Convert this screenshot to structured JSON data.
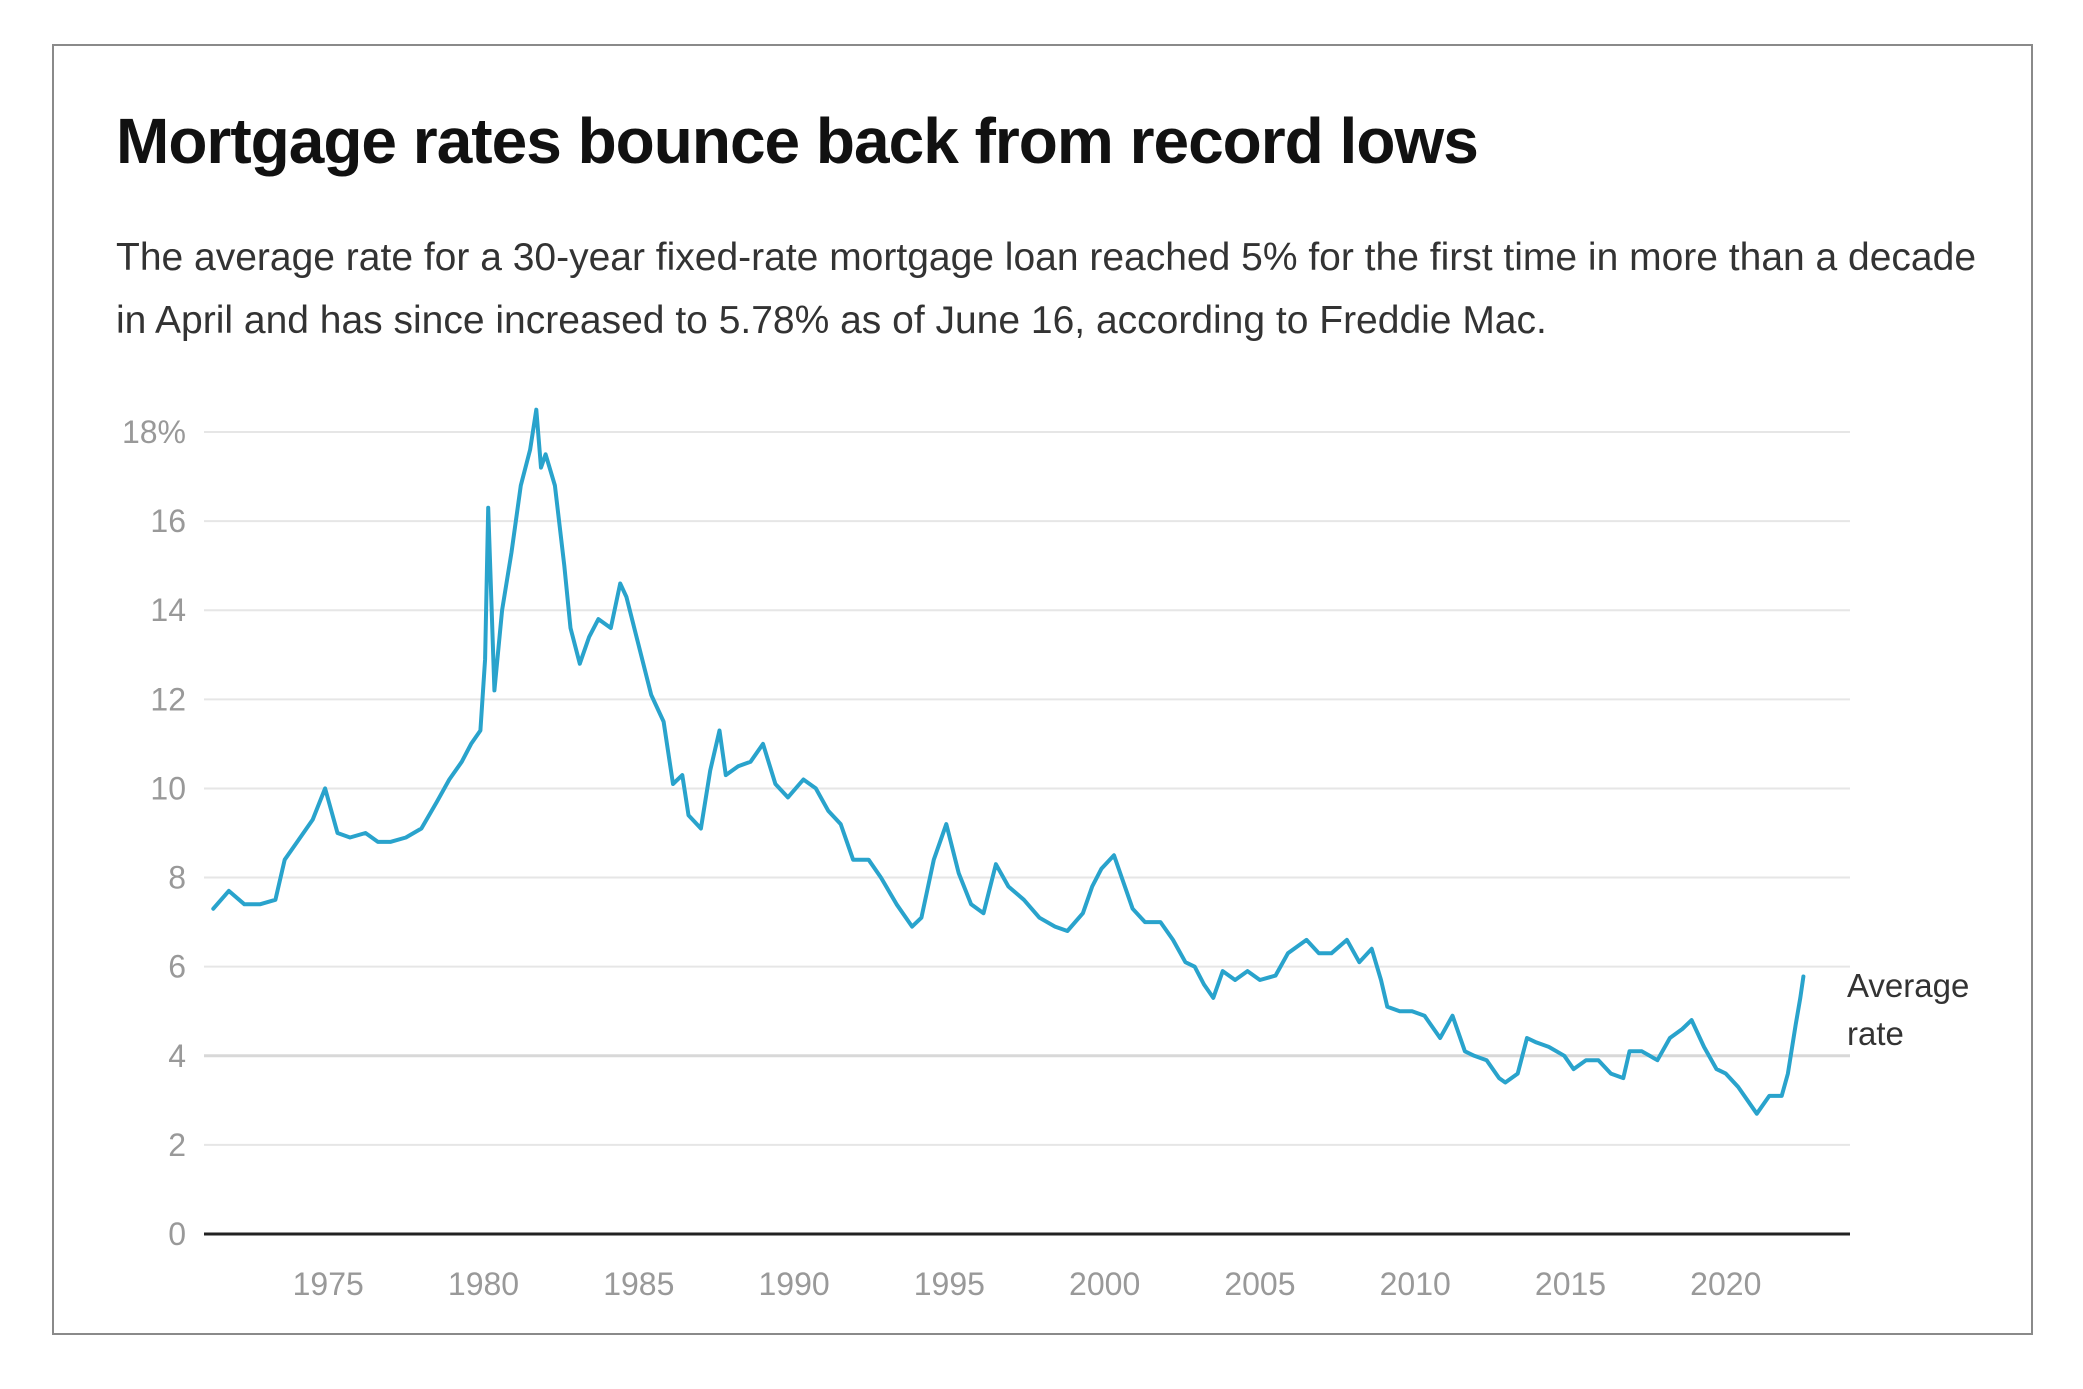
{
  "header": {
    "title": "Mortgage rates bounce back from record lows",
    "subtitle": "The average rate for a 30-year fixed-rate mortgage loan reached 5% for the first time in more than a decade in April and has since increased to 5.78% as of June 16, according to Freddie Mac."
  },
  "chart_data": {
    "type": "line",
    "title": "Mortgage rates bounce back from record lows",
    "subtitle": "The average rate for a 30-year fixed-rate mortgage loan reached 5% for the first time in more than a decade in April and has since increased to 5.78% as of June 16, according to Freddie Mac.",
    "xlabel": "",
    "ylabel": "",
    "xlim": [
      1971,
      2024
    ],
    "ylim": [
      0,
      18
    ],
    "y_ticks": [
      0,
      2,
      4,
      6,
      8,
      10,
      12,
      14,
      16,
      18
    ],
    "y_tick_labels": [
      "0",
      "2",
      "4",
      "6",
      "8",
      "10",
      "12",
      "14",
      "16",
      "18%"
    ],
    "x_ticks": [
      1975,
      1980,
      1985,
      1990,
      1995,
      2000,
      2005,
      2010,
      2015,
      2020
    ],
    "x_tick_labels": [
      "1975",
      "1980",
      "1985",
      "1990",
      "1995",
      "2000",
      "2005",
      "2010",
      "2015",
      "2020"
    ],
    "grid": true,
    "line_color": "#29a3cc",
    "annotation": {
      "line1": "Average",
      "line2": "rate"
    },
    "series": [
      {
        "name": "Average rate",
        "x": [
          1971.3,
          1971.8,
          1972.3,
          1972.8,
          1973.3,
          1973.6,
          1974.0,
          1974.5,
          1974.9,
          1975.3,
          1975.7,
          1976.2,
          1976.6,
          1977.0,
          1977.5,
          1978.0,
          1978.5,
          1978.9,
          1979.3,
          1979.6,
          1979.9,
          1980.05,
          1980.15,
          1980.35,
          1980.6,
          1980.9,
          1981.2,
          1981.5,
          1981.7,
          1981.85,
          1982.0,
          1982.3,
          1982.6,
          1982.8,
          1983.1,
          1983.4,
          1983.7,
          1984.1,
          1984.4,
          1984.6,
          1985.0,
          1985.4,
          1985.8,
          1986.1,
          1986.4,
          1986.6,
          1987.0,
          1987.3,
          1987.6,
          1987.8,
          1988.2,
          1988.6,
          1989.0,
          1989.4,
          1989.8,
          1990.3,
          1990.7,
          1991.1,
          1991.5,
          1991.9,
          1992.4,
          1992.8,
          1993.3,
          1993.8,
          1994.1,
          1994.5,
          1994.9,
          1995.3,
          1995.7,
          1996.1,
          1996.5,
          1996.9,
          1997.4,
          1997.9,
          1998.4,
          1998.8,
          1999.3,
          1999.6,
          1999.9,
          2000.3,
          2000.6,
          2000.9,
          2001.3,
          2001.8,
          2002.2,
          2002.6,
          2002.9,
          2003.2,
          2003.5,
          2003.8,
          2004.2,
          2004.6,
          2005.0,
          2005.5,
          2005.9,
          2006.5,
          2006.9,
          2007.3,
          2007.8,
          2008.2,
          2008.6,
          2008.9,
          2009.1,
          2009.5,
          2009.9,
          2010.3,
          2010.8,
          2011.2,
          2011.6,
          2011.9,
          2012.3,
          2012.7,
          2012.9,
          2013.3,
          2013.6,
          2013.9,
          2014.3,
          2014.8,
          2015.1,
          2015.5,
          2015.9,
          2016.3,
          2016.7,
          2016.9,
          2017.3,
          2017.8,
          2018.2,
          2018.6,
          2018.9,
          2019.3,
          2019.7,
          2020.0,
          2020.4,
          2020.8,
          2021.0,
          2021.4,
          2021.8,
          2022.0,
          2022.25,
          2022.4,
          2022.5
        ],
        "values": [
          7.3,
          7.7,
          7.4,
          7.4,
          7.5,
          8.4,
          8.8,
          9.3,
          10.0,
          9.0,
          8.9,
          9.0,
          8.8,
          8.8,
          8.9,
          9.1,
          9.7,
          10.2,
          10.6,
          11.0,
          11.3,
          12.9,
          16.3,
          12.2,
          14.0,
          15.3,
          16.8,
          17.6,
          18.5,
          17.2,
          17.5,
          16.8,
          15.0,
          13.6,
          12.8,
          13.4,
          13.8,
          13.6,
          14.6,
          14.3,
          13.2,
          12.1,
          11.5,
          10.1,
          10.3,
          9.4,
          9.1,
          10.4,
          11.3,
          10.3,
          10.5,
          10.6,
          11.0,
          10.1,
          9.8,
          10.2,
          10.0,
          9.5,
          9.2,
          8.4,
          8.4,
          8.0,
          7.4,
          6.9,
          7.1,
          8.4,
          9.2,
          8.1,
          7.4,
          7.2,
          8.3,
          7.8,
          7.5,
          7.1,
          6.9,
          6.8,
          7.2,
          7.8,
          8.2,
          8.5,
          7.9,
          7.3,
          7.0,
          7.0,
          6.6,
          6.1,
          6.0,
          5.6,
          5.3,
          5.9,
          5.7,
          5.9,
          5.7,
          5.8,
          6.3,
          6.6,
          6.3,
          6.3,
          6.6,
          6.1,
          6.4,
          5.7,
          5.1,
          5.0,
          5.0,
          4.9,
          4.4,
          4.9,
          4.1,
          4.0,
          3.9,
          3.5,
          3.4,
          3.6,
          4.4,
          4.3,
          4.2,
          4.0,
          3.7,
          3.9,
          3.9,
          3.6,
          3.5,
          4.1,
          4.1,
          3.9,
          4.4,
          4.6,
          4.8,
          4.2,
          3.7,
          3.6,
          3.3,
          2.9,
          2.7,
          3.1,
          3.1,
          3.6,
          4.7,
          5.3,
          5.78
        ]
      }
    ]
  }
}
